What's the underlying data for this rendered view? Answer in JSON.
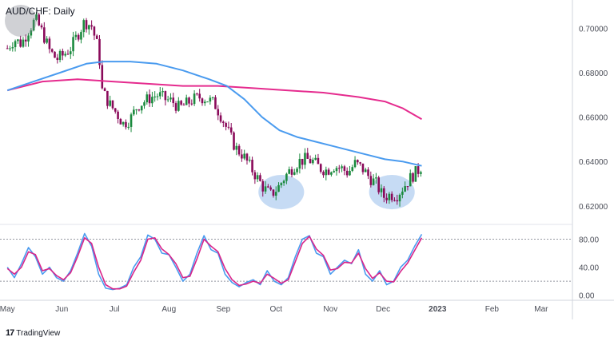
{
  "header": {
    "symbol_title": "AUD/CHF: Daily"
  },
  "footer": {
    "brand_name": "TradingView",
    "brand_mark": "17"
  },
  "colors": {
    "bull": "#26a69a",
    "bull_body": "#1b8a3e",
    "bear": "#8a0a5a",
    "ma_fast": "#4a9bef",
    "ma_slow": "#e52b8e",
    "stoch_k": "#4a9bef",
    "stoch_d": "#d9258a",
    "ellipse": "#bcd5f2",
    "grid": "#eceff3",
    "axis_text": "#4a4d57"
  },
  "chart_data": {
    "type": "candlestick",
    "title": "AUD/CHF: Daily",
    "price_panel": {
      "ylim": [
        0.612,
        0.712
      ],
      "y_ticks": [
        "0.70000",
        "0.68000",
        "0.66000",
        "0.64000",
        "0.62000"
      ],
      "y_tick_values": [
        0.7,
        0.68,
        0.66,
        0.64,
        0.62
      ],
      "close_path": [
        [
          0,
          0.691
        ],
        [
          4,
          0.695
        ],
        [
          8,
          0.693
        ],
        [
          12,
          0.699
        ],
        [
          16,
          0.704
        ],
        [
          20,
          0.698
        ],
        [
          24,
          0.69
        ],
        [
          28,
          0.686
        ],
        [
          32,
          0.688
        ],
        [
          36,
          0.691
        ],
        [
          40,
          0.697
        ],
        [
          44,
          0.703
        ],
        [
          48,
          0.701
        ],
        [
          52,
          0.69
        ],
        [
          54,
          0.672
        ],
        [
          58,
          0.666
        ],
        [
          62,
          0.662
        ],
        [
          66,
          0.657
        ],
        [
          70,
          0.659
        ],
        [
          74,
          0.665
        ],
        [
          78,
          0.667
        ],
        [
          82,
          0.669
        ],
        [
          86,
          0.67
        ],
        [
          90,
          0.668
        ],
        [
          94,
          0.667
        ],
        [
          98,
          0.664
        ],
        [
          102,
          0.666
        ],
        [
          106,
          0.668
        ],
        [
          110,
          0.669
        ],
        [
          114,
          0.668
        ],
        [
          118,
          0.666
        ],
        [
          122,
          0.66
        ],
        [
          126,
          0.653
        ],
        [
          130,
          0.646
        ],
        [
          134,
          0.643
        ],
        [
          138,
          0.638
        ],
        [
          142,
          0.633
        ],
        [
          146,
          0.628
        ],
        [
          150,
          0.625
        ],
        [
          154,
          0.628
        ],
        [
          158,
          0.633
        ],
        [
          162,
          0.637
        ],
        [
          166,
          0.64
        ],
        [
          170,
          0.641
        ],
        [
          174,
          0.64
        ],
        [
          178,
          0.637
        ],
        [
          182,
          0.636
        ],
        [
          186,
          0.638
        ],
        [
          190,
          0.637
        ],
        [
          194,
          0.635
        ],
        [
          198,
          0.639
        ],
        [
          202,
          0.637
        ],
        [
          206,
          0.633
        ],
        [
          210,
          0.63
        ],
        [
          214,
          0.624
        ],
        [
          218,
          0.625
        ],
        [
          222,
          0.625
        ],
        [
          226,
          0.629
        ],
        [
          230,
          0.633
        ],
        [
          234,
          0.636
        ],
        [
          236,
          0.638
        ]
      ],
      "ma_fast": {
        "name": "",
        "points": [
          [
            0,
            0.672
          ],
          [
            15,
            0.676
          ],
          [
            30,
            0.68
          ],
          [
            45,
            0.684
          ],
          [
            55,
            0.685
          ],
          [
            70,
            0.685
          ],
          [
            85,
            0.684
          ],
          [
            100,
            0.681
          ],
          [
            115,
            0.677
          ],
          [
            125,
            0.674
          ],
          [
            135,
            0.668
          ],
          [
            145,
            0.66
          ],
          [
            155,
            0.654
          ],
          [
            165,
            0.651
          ],
          [
            175,
            0.649
          ],
          [
            185,
            0.647
          ],
          [
            195,
            0.645
          ],
          [
            205,
            0.643
          ],
          [
            215,
            0.641
          ],
          [
            225,
            0.64
          ],
          [
            236,
            0.638
          ]
        ]
      },
      "ma_slow": {
        "name": "",
        "points": [
          [
            0,
            0.672
          ],
          [
            20,
            0.676
          ],
          [
            40,
            0.677
          ],
          [
            60,
            0.676
          ],
          [
            80,
            0.675
          ],
          [
            100,
            0.674
          ],
          [
            120,
            0.674
          ],
          [
            140,
            0.673
          ],
          [
            160,
            0.672
          ],
          [
            180,
            0.671
          ],
          [
            200,
            0.669
          ],
          [
            215,
            0.667
          ],
          [
            225,
            0.664
          ],
          [
            236,
            0.659
          ]
        ]
      },
      "highlights": [
        {
          "center_day": 156,
          "center_value": 0.6262,
          "width_days": 26,
          "height_value": 0.0155
        },
        {
          "center_day": 219,
          "center_value": 0.6262,
          "width_days": 26,
          "height_value": 0.0155
        }
      ]
    },
    "stochastic_panel": {
      "ylim": [
        -5,
        100
      ],
      "y_ticks": [
        "80.00",
        "40.00",
        "0.00"
      ],
      "y_tick_values": [
        80,
        40,
        0
      ],
      "bands": [
        80,
        20
      ],
      "k_points": [
        [
          0,
          40
        ],
        [
          4,
          25
        ],
        [
          8,
          45
        ],
        [
          12,
          68
        ],
        [
          16,
          55
        ],
        [
          20,
          30
        ],
        [
          24,
          40
        ],
        [
          28,
          25
        ],
        [
          32,
          20
        ],
        [
          36,
          35
        ],
        [
          40,
          60
        ],
        [
          44,
          88
        ],
        [
          48,
          70
        ],
        [
          52,
          30
        ],
        [
          56,
          10
        ],
        [
          60,
          8
        ],
        [
          64,
          10
        ],
        [
          68,
          15
        ],
        [
          72,
          40
        ],
        [
          76,
          55
        ],
        [
          80,
          86
        ],
        [
          84,
          80
        ],
        [
          88,
          60
        ],
        [
          92,
          58
        ],
        [
          96,
          40
        ],
        [
          100,
          20
        ],
        [
          104,
          30
        ],
        [
          108,
          60
        ],
        [
          112,
          85
        ],
        [
          116,
          65
        ],
        [
          120,
          60
        ],
        [
          124,
          30
        ],
        [
          128,
          18
        ],
        [
          132,
          12
        ],
        [
          136,
          18
        ],
        [
          140,
          22
        ],
        [
          144,
          15
        ],
        [
          148,
          35
        ],
        [
          152,
          20
        ],
        [
          156,
          15
        ],
        [
          160,
          25
        ],
        [
          164,
          55
        ],
        [
          168,
          80
        ],
        [
          172,
          85
        ],
        [
          176,
          60
        ],
        [
          180,
          55
        ],
        [
          184,
          30
        ],
        [
          188,
          40
        ],
        [
          192,
          50
        ],
        [
          196,
          45
        ],
        [
          200,
          65
        ],
        [
          204,
          30
        ],
        [
          208,
          20
        ],
        [
          212,
          35
        ],
        [
          216,
          15
        ],
        [
          220,
          20
        ],
        [
          224,
          40
        ],
        [
          228,
          50
        ],
        [
          232,
          70
        ],
        [
          236,
          87
        ]
      ],
      "d_points": [
        [
          0,
          38
        ],
        [
          4,
          30
        ],
        [
          8,
          40
        ],
        [
          12,
          62
        ],
        [
          16,
          58
        ],
        [
          20,
          35
        ],
        [
          24,
          38
        ],
        [
          28,
          28
        ],
        [
          32,
          22
        ],
        [
          36,
          32
        ],
        [
          40,
          55
        ],
        [
          44,
          82
        ],
        [
          48,
          74
        ],
        [
          52,
          40
        ],
        [
          56,
          15
        ],
        [
          60,
          9
        ],
        [
          64,
          9
        ],
        [
          68,
          13
        ],
        [
          72,
          33
        ],
        [
          76,
          50
        ],
        [
          80,
          80
        ],
        [
          84,
          82
        ],
        [
          88,
          66
        ],
        [
          92,
          58
        ],
        [
          96,
          45
        ],
        [
          100,
          25
        ],
        [
          104,
          27
        ],
        [
          108,
          52
        ],
        [
          112,
          80
        ],
        [
          116,
          70
        ],
        [
          120,
          62
        ],
        [
          124,
          38
        ],
        [
          128,
          22
        ],
        [
          132,
          14
        ],
        [
          136,
          16
        ],
        [
          140,
          20
        ],
        [
          144,
          17
        ],
        [
          148,
          30
        ],
        [
          152,
          24
        ],
        [
          156,
          17
        ],
        [
          160,
          22
        ],
        [
          164,
          48
        ],
        [
          168,
          74
        ],
        [
          172,
          84
        ],
        [
          176,
          66
        ],
        [
          180,
          57
        ],
        [
          184,
          36
        ],
        [
          188,
          38
        ],
        [
          192,
          47
        ],
        [
          196,
          46
        ],
        [
          200,
          60
        ],
        [
          204,
          38
        ],
        [
          208,
          24
        ],
        [
          212,
          32
        ],
        [
          216,
          20
        ],
        [
          220,
          19
        ],
        [
          224,
          34
        ],
        [
          228,
          46
        ],
        [
          232,
          64
        ],
        [
          236,
          82
        ]
      ]
    },
    "x_axis": {
      "labels": [
        "May",
        "Jun",
        "Jul",
        "Aug",
        "Sep",
        "Oct",
        "Nov",
        "Dec",
        "2023",
        "Feb",
        "Mar"
      ],
      "label_days": [
        0,
        31,
        61,
        92,
        123,
        153,
        184,
        214,
        245,
        276,
        304
      ],
      "bold_label": "2023",
      "xlim": [
        -1,
        320
      ]
    },
    "grid": true
  }
}
